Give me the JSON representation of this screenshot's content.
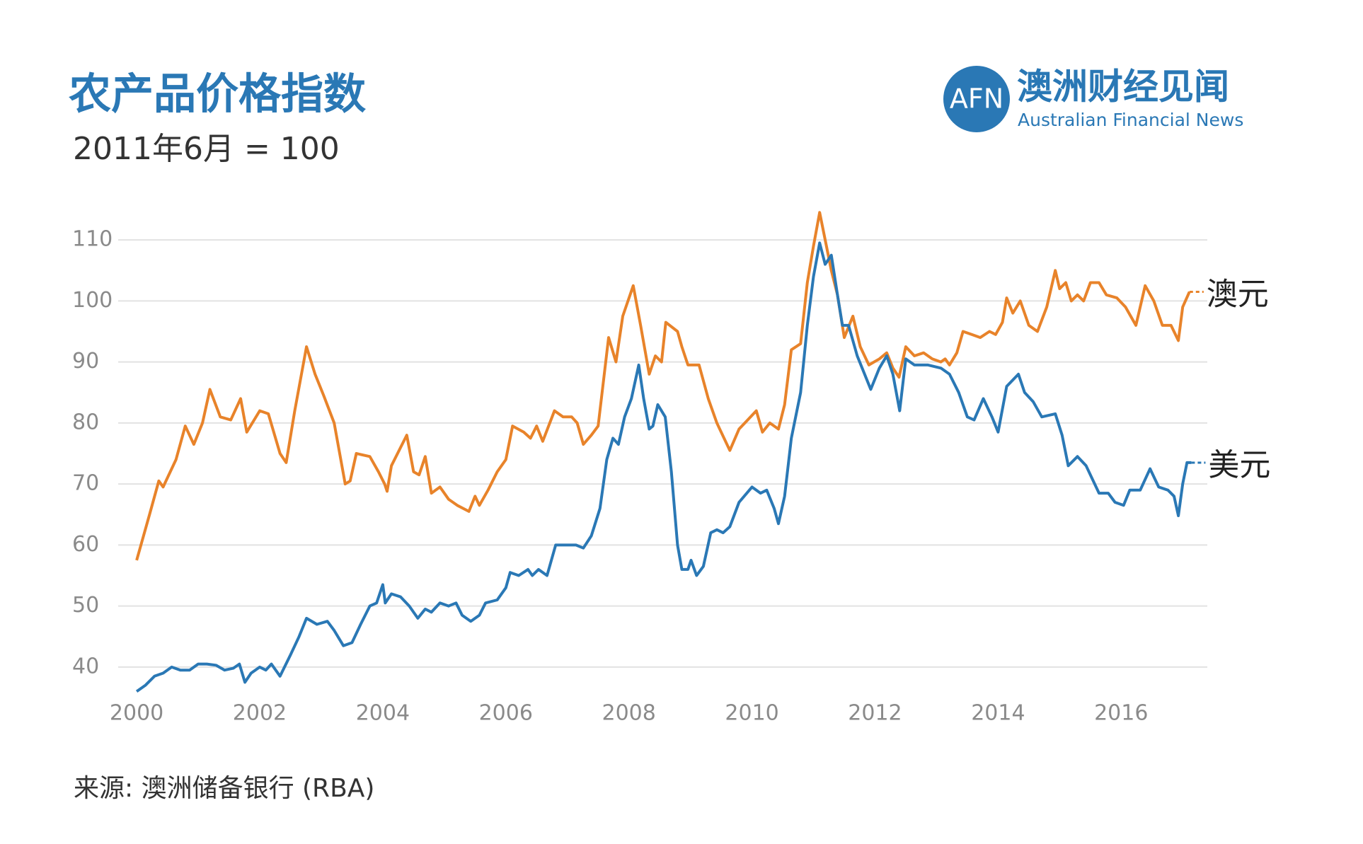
{
  "chart_data": {
    "type": "line",
    "title": "农产品价格指数",
    "subtitle": "2011年6月 = 100",
    "source": "来源: 澳洲储备银行 (RBA)",
    "logo": {
      "mark": "AFN",
      "name": "澳洲财经见闻",
      "name_en": "Australian Financial News"
    },
    "xlim": [
      1999.7,
      2017.4
    ],
    "xticks": [
      2000,
      2002,
      2004,
      2006,
      2008,
      2010,
      2012,
      2014,
      2016
    ],
    "ylim": [
      35,
      115
    ],
    "yticks": [
      40,
      50,
      60,
      70,
      80,
      90,
      100,
      110
    ],
    "grid": true,
    "series": [
      {
        "name": "澳元",
        "color": "#e8832a",
        "x": [
          2000.0,
          2000.21,
          2000.36,
          2000.43,
          2000.64,
          2000.79,
          2000.93,
          2001.07,
          2001.19,
          2001.36,
          2001.53,
          2001.69,
          2001.79,
          2002.0,
          2002.14,
          2002.33,
          2002.43,
          2002.57,
          2002.76,
          2002.9,
          2003.04,
          2003.21,
          2003.39,
          2003.47,
          2003.57,
          2003.79,
          2003.93,
          2004.03,
          2004.07,
          2004.14,
          2004.29,
          2004.39,
          2004.5,
          2004.59,
          2004.69,
          2004.79,
          2004.93,
          2005.07,
          2005.21,
          2005.4,
          2005.5,
          2005.57,
          2005.71,
          2005.86,
          2006.0,
          2006.11,
          2006.29,
          2006.4,
          2006.5,
          2006.6,
          2006.79,
          2006.93,
          2007.07,
          2007.16,
          2007.26,
          2007.39,
          2007.5,
          2007.67,
          2007.79,
          2007.9,
          2008.07,
          2008.19,
          2008.33,
          2008.43,
          2008.53,
          2008.6,
          2008.79,
          2008.86,
          2008.96,
          2009.14,
          2009.29,
          2009.43,
          2009.64,
          2009.79,
          2009.93,
          2010.07,
          2010.17,
          2010.29,
          2010.43,
          2010.53,
          2010.64,
          2010.79,
          2010.9,
          2011.0,
          2011.1,
          2011.21,
          2011.29,
          2011.39,
          2011.5,
          2011.64,
          2011.76,
          2011.9,
          2012.07,
          2012.19,
          2012.29,
          2012.39,
          2012.5,
          2012.64,
          2012.79,
          2012.93,
          2013.07,
          2013.14,
          2013.21,
          2013.33,
          2013.43,
          2013.57,
          2013.71,
          2013.86,
          2013.96,
          2014.07,
          2014.14,
          2014.24,
          2014.36,
          2014.5,
          2014.64,
          2014.79,
          2014.93,
          2015.0,
          2015.1,
          2015.19,
          2015.29,
          2015.39,
          2015.5,
          2015.64,
          2015.76,
          2015.93,
          2016.07,
          2016.24,
          2016.39,
          2016.53,
          2016.67,
          2016.81,
          2016.93,
          2017.0,
          2017.11
        ],
        "values": [
          57.5,
          65,
          70.5,
          69.5,
          74,
          79.5,
          76.5,
          80,
          85.5,
          81,
          80.5,
          84,
          78.5,
          82,
          81.5,
          75,
          73.5,
          82,
          92.5,
          88,
          84.5,
          80,
          70,
          70.5,
          75,
          74.5,
          72,
          70,
          68.8,
          73,
          76,
          78,
          72,
          71.5,
          74.5,
          68.5,
          69.5,
          67.5,
          66.5,
          65.5,
          68,
          66.5,
          69,
          72,
          74,
          79.5,
          78.5,
          77.5,
          79.5,
          77,
          82,
          81,
          81,
          80,
          76.5,
          78,
          79.5,
          94,
          90,
          97.5,
          102.5,
          96,
          88,
          91,
          90,
          96.5,
          95,
          92.5,
          89.5,
          89.5,
          84,
          80,
          75.5,
          79,
          80.5,
          82,
          78.5,
          80,
          79,
          83,
          92,
          93,
          103,
          109,
          114.5,
          109,
          105,
          101,
          94,
          97.5,
          92.5,
          89.5,
          90.5,
          91.5,
          89,
          87.5,
          92.5,
          91,
          91.5,
          90.5,
          90,
          90.5,
          89.5,
          91.5,
          95,
          94.5,
          94,
          95,
          94.5,
          96.5,
          100.5,
          98,
          100,
          96,
          95,
          99,
          105,
          102,
          103,
          100,
          101,
          100,
          103,
          103,
          101,
          100.5,
          99,
          96,
          102.5,
          100,
          96,
          96,
          93.5,
          99,
          101.5
        ]
      },
      {
        "name": "美元",
        "color": "#2a78b5",
        "x": [
          2000.0,
          2000.14,
          2000.29,
          2000.43,
          2000.57,
          2000.71,
          2000.86,
          2001.0,
          2001.14,
          2001.29,
          2001.43,
          2001.57,
          2001.67,
          2001.76,
          2001.86,
          2002.0,
          2002.1,
          2002.19,
          2002.33,
          2002.5,
          2002.64,
          2002.76,
          2002.93,
          2003.1,
          2003.21,
          2003.36,
          2003.5,
          2003.64,
          2003.79,
          2003.9,
          2004.0,
          2004.04,
          2004.14,
          2004.29,
          2004.43,
          2004.57,
          2004.69,
          2004.79,
          2004.93,
          2005.07,
          2005.19,
          2005.29,
          2005.43,
          2005.57,
          2005.67,
          2005.86,
          2006.0,
          2006.07,
          2006.21,
          2006.36,
          2006.43,
          2006.53,
          2006.67,
          2006.81,
          2007.0,
          2007.14,
          2007.26,
          2007.39,
          2007.53,
          2007.64,
          2007.74,
          2007.83,
          2007.93,
          2008.04,
          2008.16,
          2008.24,
          2008.33,
          2008.39,
          2008.47,
          2008.59,
          2008.69,
          2008.79,
          2008.86,
          2008.96,
          2009.01,
          2009.1,
          2009.21,
          2009.33,
          2009.43,
          2009.53,
          2009.64,
          2009.79,
          2010.0,
          2010.14,
          2010.24,
          2010.36,
          2010.43,
          2010.53,
          2010.64,
          2010.79,
          2010.9,
          2011.0,
          2011.1,
          2011.19,
          2011.29,
          2011.39,
          2011.47,
          2011.57,
          2011.71,
          2011.93,
          2012.07,
          2012.19,
          2012.29,
          2012.4,
          2012.5,
          2012.64,
          2012.86,
          2013.07,
          2013.21,
          2013.36,
          2013.5,
          2013.61,
          2013.76,
          2013.9,
          2014.0,
          2014.14,
          2014.33,
          2014.43,
          2014.57,
          2014.71,
          2014.93,
          2015.04,
          2015.14,
          2015.29,
          2015.43,
          2015.64,
          2015.79,
          2015.9,
          2016.04,
          2016.14,
          2016.31,
          2016.47,
          2016.61,
          2016.76,
          2016.86,
          2016.93,
          2017.0,
          2017.07,
          2017.14
        ],
        "values": [
          36,
          37,
          38.5,
          39,
          40,
          39.5,
          39.5,
          40.5,
          40.5,
          40.3,
          39.5,
          39.8,
          40.5,
          37.5,
          39,
          40,
          39.5,
          40.5,
          38.5,
          42,
          45,
          48,
          47,
          47.5,
          46,
          43.5,
          44,
          47,
          50,
          50.5,
          53.5,
          50.5,
          52,
          51.5,
          50,
          48,
          49.5,
          49,
          50.5,
          50,
          50.5,
          48.5,
          47.5,
          48.5,
          50.5,
          51,
          53,
          55.5,
          55,
          56,
          55,
          56,
          55,
          60,
          60,
          60,
          59.5,
          61.5,
          66,
          74,
          77.5,
          76.5,
          81,
          84,
          89.5,
          84,
          79,
          79.5,
          83,
          81,
          72,
          60,
          56,
          56,
          57.5,
          55,
          56.5,
          62,
          62.5,
          62,
          63,
          67,
          69.5,
          68.5,
          69,
          66,
          63.5,
          68,
          77.5,
          85,
          96,
          104,
          109.5,
          106,
          107.5,
          101,
          96,
          96,
          91,
          85.5,
          89,
          91,
          88,
          82,
          90.5,
          89.5,
          89.5,
          89,
          88,
          85,
          81,
          80.5,
          84,
          81,
          78.5,
          86,
          88,
          85,
          83.5,
          81,
          81.5,
          78,
          73,
          74.5,
          73,
          68.5,
          68.5,
          67,
          66.5,
          69,
          69,
          72.5,
          69.5,
          69,
          68,
          64.8,
          70,
          73.5,
          73.5
        ]
      }
    ]
  }
}
